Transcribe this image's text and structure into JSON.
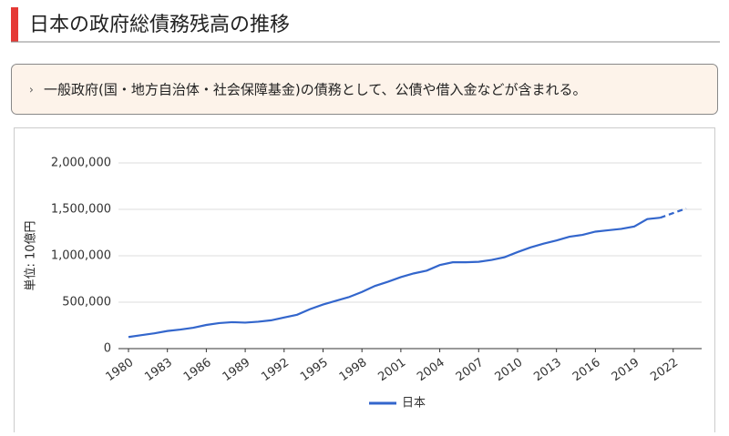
{
  "header": {
    "title": "日本の政府総債務残高の推移"
  },
  "note": {
    "text": "一般政府(国・地方自治体・社会保障基金)の債務として、公債や借入金などが含まれる。"
  },
  "chart_data": {
    "type": "line",
    "ylabel": "単位: 10億円",
    "x": [
      1980,
      1981,
      1982,
      1983,
      1984,
      1985,
      1986,
      1987,
      1988,
      1989,
      1990,
      1991,
      1992,
      1993,
      1994,
      1995,
      1996,
      1997,
      1998,
      1999,
      2000,
      2001,
      2002,
      2003,
      2004,
      2005,
      2006,
      2007,
      2008,
      2009,
      2010,
      2011,
      2012,
      2013,
      2014,
      2015,
      2016,
      2017,
      2018,
      2019,
      2020,
      2021,
      2022,
      2023
    ],
    "series": [
      {
        "name": "日本",
        "color": "#3366cc",
        "dashed_from": 2021,
        "values": [
          125000,
          145000,
          165000,
          190000,
          205000,
          225000,
          255000,
          275000,
          285000,
          280000,
          290000,
          305000,
          335000,
          365000,
          425000,
          475000,
          515000,
          555000,
          610000,
          675000,
          720000,
          770000,
          810000,
          840000,
          900000,
          930000,
          930000,
          935000,
          955000,
          985000,
          1040000,
          1090000,
          1130000,
          1165000,
          1205000,
          1225000,
          1260000,
          1275000,
          1290000,
          1315000,
          1395000,
          1410000,
          1460000,
          1510000
        ]
      }
    ],
    "xlim": [
      1980,
      2023
    ],
    "xticks": [
      1980,
      1983,
      1986,
      1989,
      1992,
      1995,
      1998,
      2001,
      2004,
      2007,
      2010,
      2013,
      2016,
      2019,
      2022
    ],
    "ylim": [
      0,
      2000000
    ],
    "yticks": [
      0,
      {
        "value": 500000,
        "label": "500,000"
      },
      {
        "value": 1000000,
        "label": "1,000,000"
      },
      {
        "value": 1500000,
        "label": "1,500,000"
      },
      {
        "value": 2000000,
        "label": "2,000,000"
      }
    ],
    "grid": true,
    "legend": "bottom"
  }
}
